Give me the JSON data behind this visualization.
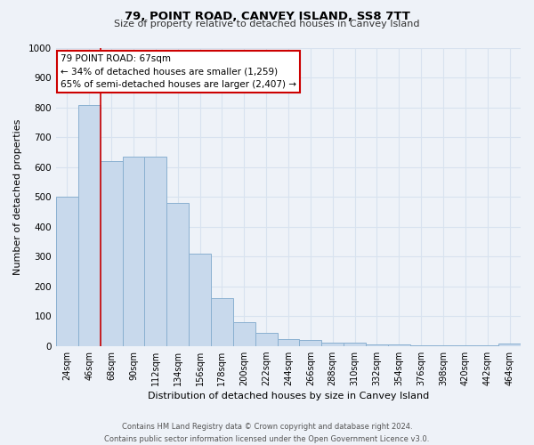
{
  "title": "79, POINT ROAD, CANVEY ISLAND, SS8 7TT",
  "subtitle": "Size of property relative to detached houses in Canvey Island",
  "xlabel": "Distribution of detached houses by size in Canvey Island",
  "ylabel": "Number of detached properties",
  "bar_labels": [
    "24sqm",
    "46sqm",
    "68sqm",
    "90sqm",
    "112sqm",
    "134sqm",
    "156sqm",
    "178sqm",
    "200sqm",
    "222sqm",
    "244sqm",
    "266sqm",
    "288sqm",
    "310sqm",
    "332sqm",
    "354sqm",
    "376sqm",
    "398sqm",
    "420sqm",
    "442sqm",
    "464sqm"
  ],
  "bar_values": [
    500,
    810,
    620,
    635,
    635,
    480,
    310,
    160,
    80,
    45,
    22,
    20,
    12,
    10,
    5,
    4,
    3,
    2,
    1,
    1,
    8
  ],
  "bar_color": "#c8d9ec",
  "bar_edge_color": "#8ab0d0",
  "vline_x": 2.0,
  "vline_color": "#cc0000",
  "annotation_title": "79 POINT ROAD: 67sqm",
  "annotation_line1": "← 34% of detached houses are smaller (1,259)",
  "annotation_line2": "65% of semi-detached houses are larger (2,407) →",
  "annotation_box_color": "#ffffff",
  "annotation_box_edge": "#cc0000",
  "ylim": [
    0,
    1000
  ],
  "yticks": [
    0,
    100,
    200,
    300,
    400,
    500,
    600,
    700,
    800,
    900,
    1000
  ],
  "footer_line1": "Contains HM Land Registry data © Crown copyright and database right 2024.",
  "footer_line2": "Contains public sector information licensed under the Open Government Licence v3.0.",
  "bg_color": "#eef2f8",
  "grid_color": "#d8e2ef"
}
